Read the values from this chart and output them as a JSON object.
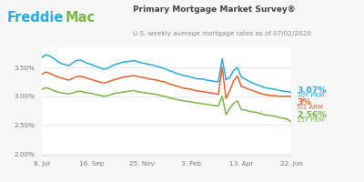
{
  "title": "Primary Mortgage Market Survey®",
  "subtitle": "U.S. weekly average mortgage rates as of 07/02/2020",
  "bg_color": "#f7f7f7",
  "plot_bg_color": "#ffffff",
  "line_colors": {
    "30yr": "#29abe2",
    "5arm": "#e8622a",
    "15yr": "#7ab648"
  },
  "label_30yr": "3.07%",
  "label_30yr_sub": "30Y FRM",
  "label_5arm": "3%",
  "label_5arm_sub": "5/1 ARM",
  "label_15yr": "2.56%",
  "label_15yr_sub": "15Y FRM",
  "freddie_blue": "#29abe2",
  "freddie_green": "#7ab648",
  "freddie_text": "Freddie",
  "mac_text": "Mac",
  "ylim": [
    1.97,
    3.85
  ],
  "yticks": [
    2.0,
    2.5,
    3.0,
    3.5
  ],
  "xtick_labels": [
    "8. Jul",
    "16. Sep",
    "25. Nov",
    "3. Feb",
    "13. Apr",
    "22. Jun"
  ],
  "30yr_data": [
    3.67,
    3.72,
    3.7,
    3.66,
    3.61,
    3.57,
    3.55,
    3.53,
    3.58,
    3.62,
    3.63,
    3.6,
    3.57,
    3.55,
    3.52,
    3.5,
    3.47,
    3.48,
    3.52,
    3.55,
    3.57,
    3.59,
    3.6,
    3.61,
    3.62,
    3.6,
    3.58,
    3.57,
    3.55,
    3.54,
    3.52,
    3.5,
    3.48,
    3.45,
    3.43,
    3.4,
    3.38,
    3.36,
    3.35,
    3.33,
    3.31,
    3.3,
    3.3,
    3.28,
    3.27,
    3.26,
    3.25,
    3.65,
    3.29,
    3.33,
    3.45,
    3.5,
    3.33,
    3.3,
    3.26,
    3.23,
    3.2,
    3.18,
    3.15,
    3.14,
    3.13,
    3.12,
    3.1,
    3.09,
    3.08,
    3.07
  ],
  "5arm_data": [
    3.38,
    3.42,
    3.4,
    3.37,
    3.34,
    3.32,
    3.3,
    3.28,
    3.31,
    3.34,
    3.35,
    3.33,
    3.31,
    3.29,
    3.27,
    3.25,
    3.23,
    3.24,
    3.27,
    3.29,
    3.31,
    3.33,
    3.34,
    3.35,
    3.36,
    3.34,
    3.33,
    3.32,
    3.3,
    3.29,
    3.28,
    3.26,
    3.25,
    3.22,
    3.2,
    3.18,
    3.16,
    3.14,
    3.13,
    3.12,
    3.1,
    3.09,
    3.08,
    3.07,
    3.06,
    3.05,
    3.03,
    3.5,
    2.96,
    3.1,
    3.27,
    3.35,
    3.17,
    3.15,
    3.12,
    3.1,
    3.07,
    3.05,
    3.03,
    3.02,
    3.01,
    3.01,
    3.0,
    3.0,
    3.0,
    3.0
  ],
  "15yr_data": [
    3.12,
    3.15,
    3.13,
    3.1,
    3.08,
    3.06,
    3.05,
    3.04,
    3.06,
    3.08,
    3.09,
    3.07,
    3.06,
    3.05,
    3.03,
    3.02,
    3.0,
    3.01,
    3.03,
    3.05,
    3.06,
    3.07,
    3.08,
    3.09,
    3.1,
    3.08,
    3.07,
    3.06,
    3.05,
    3.04,
    3.03,
    3.01,
    3.0,
    2.98,
    2.96,
    2.95,
    2.93,
    2.92,
    2.91,
    2.9,
    2.89,
    2.88,
    2.87,
    2.86,
    2.85,
    2.84,
    2.83,
    3.0,
    2.68,
    2.79,
    2.88,
    2.92,
    2.77,
    2.76,
    2.74,
    2.73,
    2.72,
    2.7,
    2.68,
    2.67,
    2.66,
    2.65,
    2.63,
    2.62,
    2.6,
    2.56
  ]
}
